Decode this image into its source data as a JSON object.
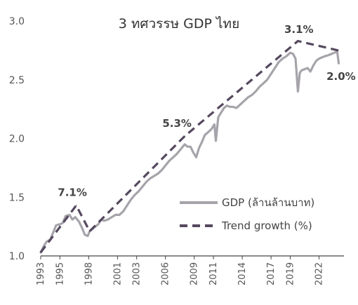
{
  "chart_data": {
    "type": "line",
    "title": "3 ทศวรรษ GDP ไทย",
    "xlabel": "",
    "ylabel": "",
    "xlim": [
      1993,
      2024.6
    ],
    "ylim": [
      1.0,
      3.0
    ],
    "yticks": [
      "1.0",
      "1.5",
      "2.0",
      "2.5",
      "3.0"
    ],
    "xtick_labels": [
      "1993",
      "1995",
      "1998",
      "2001",
      "2003",
      "2006",
      "2009",
      "2011",
      "2014",
      "2017",
      "2019",
      "2022"
    ],
    "xtick_values": [
      1993,
      1995,
      1998,
      2001,
      2003,
      2006,
      2009,
      2011,
      2014,
      2017,
      2019,
      2022
    ],
    "legend_position": "bottom-right",
    "series": [
      {
        "name": "GDP (ล้านล้านบาท)",
        "color": "#a6a4aa",
        "style": "solid",
        "x": [
          1993.0,
          1993.3,
          1993.6,
          1994.0,
          1994.3,
          1994.6,
          1995.0,
          1995.3,
          1995.6,
          1996.0,
          1996.3,
          1996.6,
          1997.0,
          1997.3,
          1997.6,
          1997.9,
          1998.1,
          1998.4,
          1998.7,
          1999.0,
          1999.3,
          1999.6,
          2000.0,
          2000.4,
          2000.8,
          2001.2,
          2001.6,
          2002.0,
          2002.4,
          2002.8,
          2003.2,
          2003.6,
          2004.0,
          2004.4,
          2004.8,
          2005.2,
          2005.6,
          2006.0,
          2006.4,
          2006.8,
          2007.2,
          2007.6,
          2008.0,
          2008.3,
          2008.6,
          2008.9,
          2009.2,
          2009.5,
          2009.8,
          2010.1,
          2010.4,
          2010.8,
          2011.1,
          2011.25,
          2011.5,
          2011.8,
          2012.1,
          2012.4,
          2012.7,
          2013.0,
          2013.4,
          2013.8,
          2014.2,
          2014.6,
          2015.0,
          2015.4,
          2015.8,
          2016.2,
          2016.6,
          2017.0,
          2017.4,
          2017.8,
          2018.2,
          2018.6,
          2019.0,
          2019.3,
          2019.55,
          2019.8,
          2020.0,
          2020.2,
          2020.5,
          2020.8,
          2021.1,
          2021.4,
          2021.7,
          2022.0,
          2022.3,
          2022.6,
          2023.0,
          2023.3,
          2023.6,
          2023.9,
          2024.05
        ],
        "y": [
          1.03,
          1.08,
          1.12,
          1.14,
          1.2,
          1.26,
          1.27,
          1.28,
          1.34,
          1.35,
          1.31,
          1.33,
          1.29,
          1.24,
          1.18,
          1.17,
          1.21,
          1.23,
          1.25,
          1.27,
          1.31,
          1.3,
          1.31,
          1.33,
          1.35,
          1.35,
          1.38,
          1.43,
          1.48,
          1.52,
          1.55,
          1.59,
          1.63,
          1.66,
          1.68,
          1.7,
          1.73,
          1.77,
          1.81,
          1.84,
          1.87,
          1.91,
          1.95,
          1.93,
          1.93,
          1.88,
          1.84,
          1.92,
          1.97,
          2.03,
          2.05,
          2.08,
          2.12,
          1.98,
          2.18,
          2.22,
          2.26,
          2.28,
          2.27,
          2.27,
          2.26,
          2.29,
          2.32,
          2.35,
          2.37,
          2.4,
          2.44,
          2.47,
          2.5,
          2.55,
          2.6,
          2.65,
          2.68,
          2.7,
          2.73,
          2.72,
          2.68,
          2.4,
          2.56,
          2.58,
          2.59,
          2.6,
          2.57,
          2.62,
          2.66,
          2.68,
          2.69,
          2.7,
          2.71,
          2.72,
          2.73,
          2.74,
          2.64
        ]
      },
      {
        "name": "Trend growth (%)",
        "color": "#55495f",
        "style": "dashed",
        "x": [
          1993.0,
          1996.7,
          1998.1,
          2008.0,
          2019.8,
          2024.0
        ],
        "y": [
          1.03,
          1.43,
          1.21,
          2.02,
          2.83,
          2.75
        ]
      }
    ],
    "annotations": [
      {
        "text": "7.1%",
        "x": 1996.3,
        "y": 1.51
      },
      {
        "text": "5.3%",
        "x": 2007.2,
        "y": 2.1
      },
      {
        "text": "3.1%",
        "x": 2019.9,
        "y": 2.9
      },
      {
        "text": "2.0%",
        "x": 2024.3,
        "y": 2.5
      }
    ]
  }
}
